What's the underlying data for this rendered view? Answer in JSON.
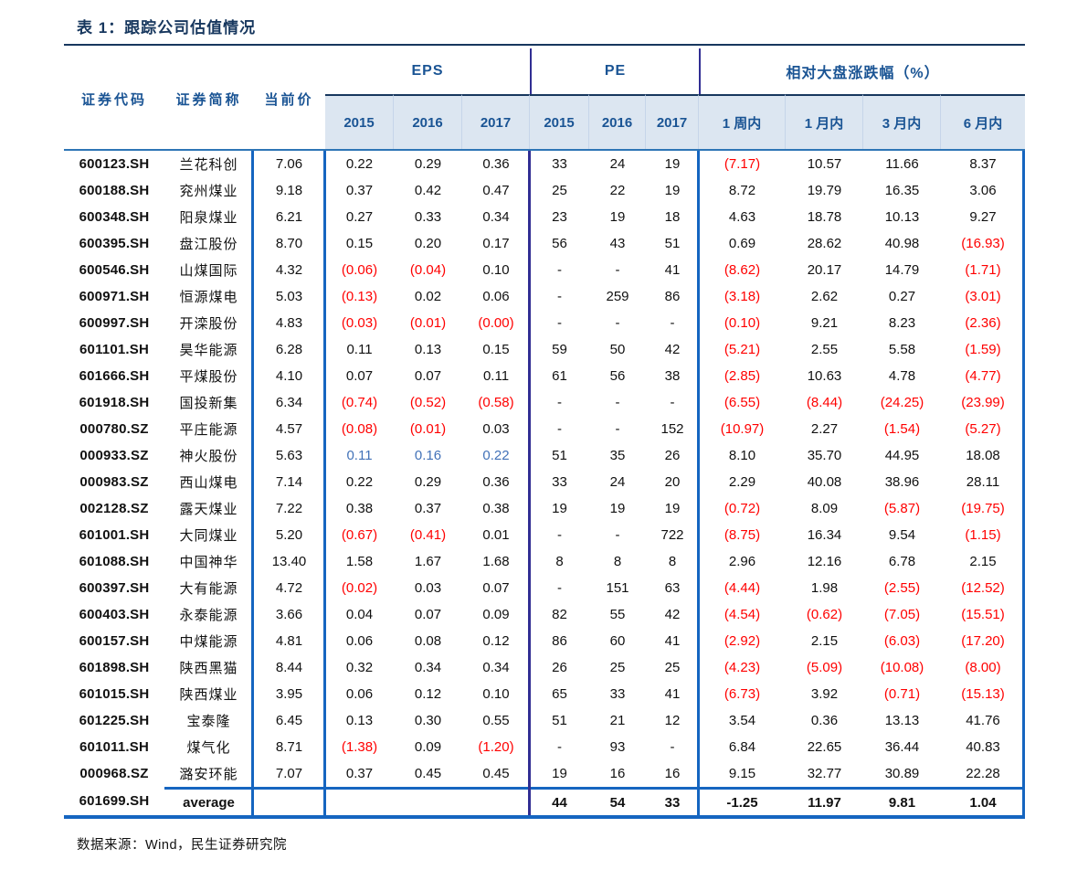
{
  "title": "表 1：跟踪公司估值情况",
  "source": "数据来源：Wind，民生证券研究院",
  "colors": {
    "title_navy": "#17375E",
    "header_blue": "#1A5494",
    "band_background": "#DCE6F1",
    "divider_blue": "#1565C0",
    "divider_navy": "#312E93",
    "negative_red": "#FF0000",
    "highlight_blue": "#4272B8"
  },
  "table": {
    "col_headers": {
      "code": "证券代码",
      "name": "证券简称",
      "price": "当前价"
    },
    "groups": [
      {
        "label": "EPS",
        "sub": [
          "2015",
          "2016",
          "2017"
        ]
      },
      {
        "label": "PE",
        "sub": [
          "2015",
          "2016",
          "2017"
        ]
      },
      {
        "label": "相对大盘涨跌幅（%）",
        "sub": [
          "1 周内",
          "1 月内",
          "3 月内",
          "6 月内"
        ]
      }
    ],
    "rows": [
      {
        "code": "600123.SH",
        "name": "兰花科创",
        "price": "7.06",
        "eps": [
          "0.22",
          "0.29",
          "0.36"
        ],
        "pe": [
          "33",
          "24",
          "19"
        ],
        "rel": [
          "(7.17)",
          "10.57",
          "11.66",
          "8.37"
        ]
      },
      {
        "code": "600188.SH",
        "name": "兖州煤业",
        "price": "9.18",
        "eps": [
          "0.37",
          "0.42",
          "0.47"
        ],
        "pe": [
          "25",
          "22",
          "19"
        ],
        "rel": [
          "8.72",
          "19.79",
          "16.35",
          "3.06"
        ]
      },
      {
        "code": "600348.SH",
        "name": "阳泉煤业",
        "price": "6.21",
        "eps": [
          "0.27",
          "0.33",
          "0.34"
        ],
        "pe": [
          "23",
          "19",
          "18"
        ],
        "rel": [
          "4.63",
          "18.78",
          "10.13",
          "9.27"
        ]
      },
      {
        "code": "600395.SH",
        "name": "盘江股份",
        "price": "8.70",
        "eps": [
          "0.15",
          "0.20",
          "0.17"
        ],
        "pe": [
          "56",
          "43",
          "51"
        ],
        "rel": [
          "0.69",
          "28.62",
          "40.98",
          "(16.93)"
        ]
      },
      {
        "code": "600546.SH",
        "name": "山煤国际",
        "price": "4.32",
        "eps": [
          "(0.06)",
          "(0.04)",
          "0.10"
        ],
        "pe": [
          "-",
          "-",
          "41"
        ],
        "rel": [
          "(8.62)",
          "20.17",
          "14.79",
          "(1.71)"
        ]
      },
      {
        "code": "600971.SH",
        "name": "恒源煤电",
        "price": "5.03",
        "eps": [
          "(0.13)",
          "0.02",
          "0.06"
        ],
        "pe": [
          "-",
          "259",
          "86"
        ],
        "rel": [
          "(3.18)",
          "2.62",
          "0.27",
          "(3.01)"
        ]
      },
      {
        "code": "600997.SH",
        "name": "开滦股份",
        "price": "4.83",
        "eps": [
          "(0.03)",
          "(0.01)",
          "(0.00)"
        ],
        "pe": [
          "-",
          "-",
          "-"
        ],
        "rel": [
          "(0.10)",
          "9.21",
          "8.23",
          "(2.36)"
        ]
      },
      {
        "code": "601101.SH",
        "name": "昊华能源",
        "price": "6.28",
        "eps": [
          "0.11",
          "0.13",
          "0.15"
        ],
        "pe": [
          "59",
          "50",
          "42"
        ],
        "rel": [
          "(5.21)",
          "2.55",
          "5.58",
          "(1.59)"
        ]
      },
      {
        "code": "601666.SH",
        "name": "平煤股份",
        "price": "4.10",
        "eps": [
          "0.07",
          "0.07",
          "0.11"
        ],
        "pe": [
          "61",
          "56",
          "38"
        ],
        "rel": [
          "(2.85)",
          "10.63",
          "4.78",
          "(4.77)"
        ]
      },
      {
        "code": "601918.SH",
        "name": "国投新集",
        "price": "6.34",
        "eps": [
          "(0.74)",
          "(0.52)",
          "(0.58)"
        ],
        "pe": [
          "-",
          "-",
          "-"
        ],
        "rel": [
          "(6.55)",
          "(8.44)",
          "(24.25)",
          "(23.99)"
        ]
      },
      {
        "code": "000780.SZ",
        "name": "平庄能源",
        "price": "4.57",
        "eps": [
          "(0.08)",
          "(0.01)",
          "0.03"
        ],
        "pe": [
          "-",
          "-",
          "152"
        ],
        "rel": [
          "(10.97)",
          "2.27",
          "(1.54)",
          "(5.27)"
        ]
      },
      {
        "code": "000933.SZ",
        "name": "神火股份",
        "price": "5.63",
        "eps": [
          "0.11",
          "0.16",
          "0.22"
        ],
        "pe": [
          "51",
          "35",
          "26"
        ],
        "rel": [
          "8.10",
          "35.70",
          "44.95",
          "18.08"
        ],
        "eps_blue": true
      },
      {
        "code": "000983.SZ",
        "name": "西山煤电",
        "price": "7.14",
        "eps": [
          "0.22",
          "0.29",
          "0.36"
        ],
        "pe": [
          "33",
          "24",
          "20"
        ],
        "rel": [
          "2.29",
          "40.08",
          "38.96",
          "28.11"
        ]
      },
      {
        "code": "002128.SZ",
        "name": "露天煤业",
        "price": "7.22",
        "eps": [
          "0.38",
          "0.37",
          "0.38"
        ],
        "pe": [
          "19",
          "19",
          "19"
        ],
        "rel": [
          "(0.72)",
          "8.09",
          "(5.87)",
          "(19.75)"
        ]
      },
      {
        "code": "601001.SH",
        "name": "大同煤业",
        "price": "5.20",
        "eps": [
          "(0.67)",
          "(0.41)",
          "0.01"
        ],
        "pe": [
          "-",
          "-",
          "722"
        ],
        "rel": [
          "(8.75)",
          "16.34",
          "9.54",
          "(1.15)"
        ]
      },
      {
        "code": "601088.SH",
        "name": "中国神华",
        "price": "13.40",
        "eps": [
          "1.58",
          "1.67",
          "1.68"
        ],
        "pe": [
          "8",
          "8",
          "8"
        ],
        "rel": [
          "2.96",
          "12.16",
          "6.78",
          "2.15"
        ]
      },
      {
        "code": "600397.SH",
        "name": "大有能源",
        "price": "4.72",
        "eps": [
          "(0.02)",
          "0.03",
          "0.07"
        ],
        "pe": [
          "-",
          "151",
          "63"
        ],
        "rel": [
          "(4.44)",
          "1.98",
          "(2.55)",
          "(12.52)"
        ]
      },
      {
        "code": "600403.SH",
        "name": "永泰能源",
        "price": "3.66",
        "eps": [
          "0.04",
          "0.07",
          "0.09"
        ],
        "pe": [
          "82",
          "55",
          "42"
        ],
        "rel": [
          "(4.54)",
          "(0.62)",
          "(7.05)",
          "(15.51)"
        ]
      },
      {
        "code": "600157.SH",
        "name": "中煤能源",
        "price": "4.81",
        "eps": [
          "0.06",
          "0.08",
          "0.12"
        ],
        "pe": [
          "86",
          "60",
          "41"
        ],
        "rel": [
          "(2.92)",
          "2.15",
          "(6.03)",
          "(17.20)"
        ]
      },
      {
        "code": "601898.SH",
        "name": "陕西黑猫",
        "price": "8.44",
        "eps": [
          "0.32",
          "0.34",
          "0.34"
        ],
        "pe": [
          "26",
          "25",
          "25"
        ],
        "rel": [
          "(4.23)",
          "(5.09)",
          "(10.08)",
          "(8.00)"
        ]
      },
      {
        "code": "601015.SH",
        "name": "陕西煤业",
        "price": "3.95",
        "eps": [
          "0.06",
          "0.12",
          "0.10"
        ],
        "pe": [
          "65",
          "33",
          "41"
        ],
        "rel": [
          "(6.73)",
          "3.92",
          "(0.71)",
          "(15.13)"
        ]
      },
      {
        "code": "601225.SH",
        "name": "宝泰隆",
        "price": "6.45",
        "eps": [
          "0.13",
          "0.30",
          "0.55"
        ],
        "pe": [
          "51",
          "21",
          "12"
        ],
        "rel": [
          "3.54",
          "0.36",
          "13.13",
          "41.76"
        ]
      },
      {
        "code": "601011.SH",
        "name": "煤气化",
        "price": "8.71",
        "eps": [
          "(1.38)",
          "0.09",
          "(1.20)"
        ],
        "pe": [
          "-",
          "93",
          "-"
        ],
        "rel": [
          "6.84",
          "22.65",
          "36.44",
          "40.83"
        ]
      },
      {
        "code": "000968.SZ",
        "name": "潞安环能",
        "price": "7.07",
        "eps": [
          "0.37",
          "0.45",
          "0.45"
        ],
        "pe": [
          "19",
          "16",
          "16"
        ],
        "rel": [
          "9.15",
          "32.77",
          "30.89",
          "22.28"
        ]
      }
    ],
    "average_row": {
      "code": "601699.SH",
      "name": "average",
      "price": "",
      "eps": [
        "",
        "",
        ""
      ],
      "pe": [
        "44",
        "54",
        "33"
      ],
      "rel": [
        "-1.25",
        "11.97",
        "9.81",
        "1.04"
      ]
    }
  }
}
